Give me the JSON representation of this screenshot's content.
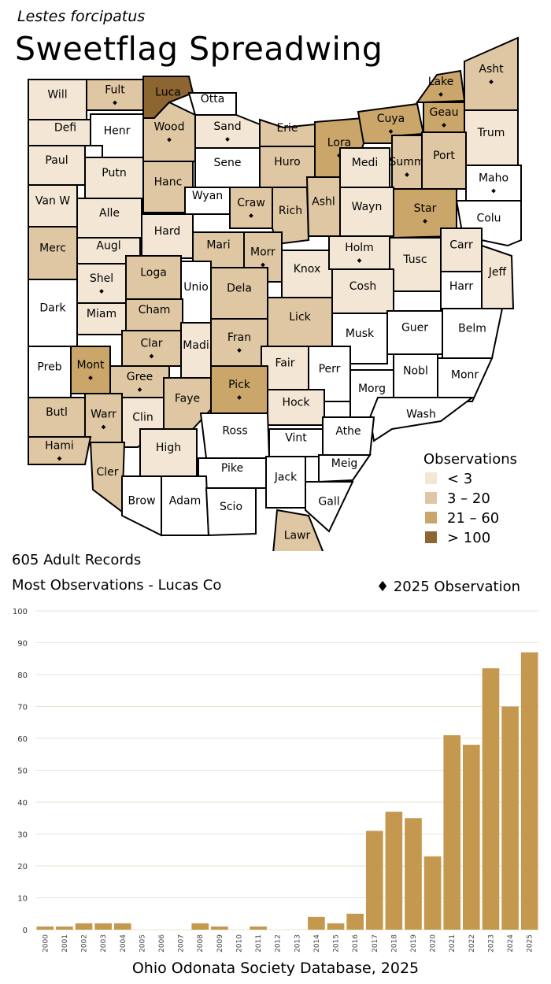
{
  "header": {
    "scientific_name": "Lestes forcipatus",
    "common_name": "Sweetflag Spreadwing"
  },
  "summary": {
    "records": "605 Adult Records",
    "most": "Most Observations - Lucas Co",
    "marker_legend": "2025 Observation"
  },
  "legend": {
    "title": "Observations",
    "bins": [
      {
        "label": "< 3",
        "color": "#f3e6d4"
      },
      {
        "label": "3 – 20",
        "color": "#dfc7a3"
      },
      {
        "label": "21 – 60",
        "color": "#cba66b"
      },
      {
        "label": "> 100",
        "color": "#8c6530"
      }
    ]
  },
  "colors": {
    "none": "#ffffff",
    "low": "#f3e6d4",
    "mid": "#dfc7a3",
    "high": "#cba66b",
    "top": "#8c6530",
    "bar": "#c4994f",
    "grid": "#e9e3d2"
  },
  "counties": [
    {
      "name": "Will",
      "level": "low",
      "dot": false
    },
    {
      "name": "Fult",
      "level": "mid",
      "dot": true
    },
    {
      "name": "Luca",
      "level": "top",
      "dot": true
    },
    {
      "name": "Otta",
      "level": "none",
      "dot": false
    },
    {
      "name": "Defi",
      "level": "low",
      "dot": false
    },
    {
      "name": "Henr",
      "level": "none",
      "dot": false
    },
    {
      "name": "Wood",
      "level": "mid",
      "dot": true
    },
    {
      "name": "Sand",
      "level": "low",
      "dot": true
    },
    {
      "name": "Erie",
      "level": "mid",
      "dot": false
    },
    {
      "name": "Lora",
      "level": "high",
      "dot": true
    },
    {
      "name": "Cuya",
      "level": "high",
      "dot": true
    },
    {
      "name": "Lake",
      "level": "high",
      "dot": true
    },
    {
      "name": "Asht",
      "level": "mid",
      "dot": true
    },
    {
      "name": "Geau",
      "level": "high",
      "dot": true
    },
    {
      "name": "Trum",
      "level": "low",
      "dot": false
    },
    {
      "name": "Paul",
      "level": "low",
      "dot": false
    },
    {
      "name": "Putn",
      "level": "low",
      "dot": false
    },
    {
      "name": "Hanc",
      "level": "mid",
      "dot": false
    },
    {
      "name": "Sene",
      "level": "none",
      "dot": false
    },
    {
      "name": "Huro",
      "level": "mid",
      "dot": false
    },
    {
      "name": "Medi",
      "level": "low",
      "dot": false
    },
    {
      "name": "Summ",
      "level": "mid",
      "dot": true
    },
    {
      "name": "Port",
      "level": "mid",
      "dot": false
    },
    {
      "name": "Maho",
      "level": "none",
      "dot": true
    },
    {
      "name": "Van W",
      "level": "low",
      "dot": false
    },
    {
      "name": "Alle",
      "level": "low",
      "dot": false
    },
    {
      "name": "Wyan",
      "level": "none",
      "dot": false
    },
    {
      "name": "Craw",
      "level": "mid",
      "dot": true
    },
    {
      "name": "Rich",
      "level": "mid",
      "dot": false
    },
    {
      "name": "Ashl",
      "level": "mid",
      "dot": false
    },
    {
      "name": "Wayn",
      "level": "low",
      "dot": false
    },
    {
      "name": "Star",
      "level": "high",
      "dot": true
    },
    {
      "name": "Colu",
      "level": "none",
      "dot": false
    },
    {
      "name": "Merc",
      "level": "mid",
      "dot": false
    },
    {
      "name": "Augl",
      "level": "low",
      "dot": false
    },
    {
      "name": "Hard",
      "level": "low",
      "dot": false
    },
    {
      "name": "Mari",
      "level": "mid",
      "dot": false
    },
    {
      "name": "Morr",
      "level": "mid",
      "dot": true
    },
    {
      "name": "Knox",
      "level": "low",
      "dot": false
    },
    {
      "name": "Holm",
      "level": "low",
      "dot": true
    },
    {
      "name": "Tusc",
      "level": "low",
      "dot": false
    },
    {
      "name": "Carr",
      "level": "low",
      "dot": false
    },
    {
      "name": "Jeff",
      "level": "low",
      "dot": false
    },
    {
      "name": "Shel",
      "level": "low",
      "dot": true
    },
    {
      "name": "Loga",
      "level": "mid",
      "dot": false
    },
    {
      "name": "Unio",
      "level": "none",
      "dot": false
    },
    {
      "name": "Dela",
      "level": "mid",
      "dot": false
    },
    {
      "name": "Lick",
      "level": "mid",
      "dot": false
    },
    {
      "name": "Cosh",
      "level": "low",
      "dot": false
    },
    {
      "name": "Harr",
      "level": "none",
      "dot": false
    },
    {
      "name": "Dark",
      "level": "none",
      "dot": false
    },
    {
      "name": "Miam",
      "level": "low",
      "dot": false
    },
    {
      "name": "Cham",
      "level": "mid",
      "dot": false
    },
    {
      "name": "Fran",
      "level": "mid",
      "dot": true
    },
    {
      "name": "Musk",
      "level": "none",
      "dot": false
    },
    {
      "name": "Guer",
      "level": "none",
      "dot": false
    },
    {
      "name": "Belm",
      "level": "none",
      "dot": false
    },
    {
      "name": "Clar",
      "level": "mid",
      "dot": true
    },
    {
      "name": "Madi",
      "level": "low",
      "dot": false
    },
    {
      "name": "Preb",
      "level": "none",
      "dot": false
    },
    {
      "name": "Mont",
      "level": "high",
      "dot": true
    },
    {
      "name": "Gree",
      "level": "mid",
      "dot": true
    },
    {
      "name": "Fair",
      "level": "low",
      "dot": false
    },
    {
      "name": "Perr",
      "level": "none",
      "dot": false
    },
    {
      "name": "Morg",
      "level": "none",
      "dot": false
    },
    {
      "name": "Nobl",
      "level": "none",
      "dot": false
    },
    {
      "name": "Monr",
      "level": "none",
      "dot": false
    },
    {
      "name": "Pick",
      "level": "high",
      "dot": true
    },
    {
      "name": "Faye",
      "level": "mid",
      "dot": false
    },
    {
      "name": "Butl",
      "level": "mid",
      "dot": false
    },
    {
      "name": "Warr",
      "level": "mid",
      "dot": true
    },
    {
      "name": "Clin",
      "level": "low",
      "dot": false
    },
    {
      "name": "Hock",
      "level": "low",
      "dot": false
    },
    {
      "name": "Wash",
      "level": "none",
      "dot": false
    },
    {
      "name": "Ross",
      "level": "none",
      "dot": false
    },
    {
      "name": "Athe",
      "level": "none",
      "dot": false
    },
    {
      "name": "Hami",
      "level": "mid",
      "dot": true
    },
    {
      "name": "High",
      "level": "low",
      "dot": false
    },
    {
      "name": "Vint",
      "level": "none",
      "dot": false
    },
    {
      "name": "Cler",
      "level": "mid",
      "dot": false
    },
    {
      "name": "Pike",
      "level": "none",
      "dot": false
    },
    {
      "name": "Jack",
      "level": "none",
      "dot": false
    },
    {
      "name": "Meig",
      "level": "none",
      "dot": false
    },
    {
      "name": "Brow",
      "level": "none",
      "dot": false
    },
    {
      "name": "Adam",
      "level": "none",
      "dot": false
    },
    {
      "name": "Scio",
      "level": "none",
      "dot": false
    },
    {
      "name": "Gall",
      "level": "none",
      "dot": false
    },
    {
      "name": "Lawr",
      "level": "mid",
      "dot": false
    }
  ],
  "chart_data": {
    "type": "bar",
    "title": "",
    "xlabel": "",
    "ylabel": "",
    "categories": [
      "2000",
      "2001",
      "2002",
      "2003",
      "2004",
      "2005",
      "2006",
      "2007",
      "2008",
      "2009",
      "2010",
      "2011",
      "2012",
      "2013",
      "2014",
      "2015",
      "2016",
      "2017",
      "2018",
      "2019",
      "2020",
      "2021",
      "2022",
      "2023",
      "2024",
      "2025"
    ],
    "values": [
      1,
      1,
      2,
      2,
      2,
      0,
      0,
      0,
      2,
      1,
      0,
      1,
      0,
      0,
      4,
      2,
      5,
      31,
      37,
      35,
      23,
      61,
      58,
      82,
      70,
      87
    ],
    "ylim": [
      0,
      100
    ],
    "yticks": [
      0,
      10,
      20,
      30,
      40,
      50,
      60,
      70,
      80,
      90,
      100
    ],
    "grid": true,
    "legend": "none"
  },
  "footer": "Ohio Odonata Society Database, 2025"
}
